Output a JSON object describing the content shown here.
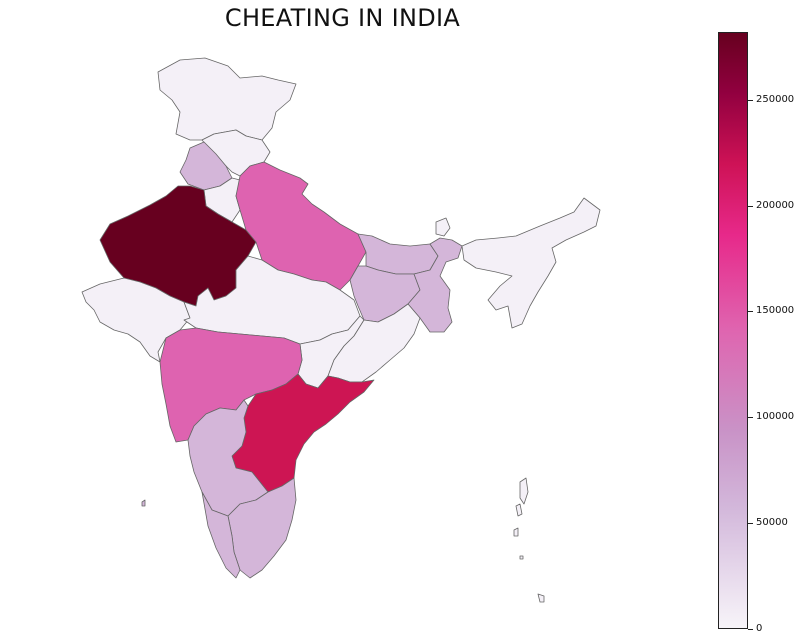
{
  "title": "CHEATING IN INDIA",
  "colorbar": {
    "min": 0,
    "max": 282000,
    "colormap": "PuRd",
    "ticks": [
      {
        "value": 0,
        "label": "0"
      },
      {
        "value": 50000,
        "label": "50000"
      },
      {
        "value": 100000,
        "label": "100000"
      },
      {
        "value": 150000,
        "label": "150000"
      },
      {
        "value": 200000,
        "label": "200000"
      },
      {
        "value": 250000,
        "label": "250000"
      }
    ]
  },
  "colors": {
    "very_low": "#f4f0f7",
    "low": "#d4b6d9",
    "mid": "#de63b0",
    "high": "#cd1553",
    "very_high": "#67001f"
  },
  "regions": [
    {
      "name": "Jammu & Kashmir",
      "level": "very_low"
    },
    {
      "name": "Himachal Pradesh",
      "level": "very_low"
    },
    {
      "name": "Punjab",
      "level": "low"
    },
    {
      "name": "Haryana",
      "level": "very_low"
    },
    {
      "name": "Rajasthan",
      "level": "very_high"
    },
    {
      "name": "Uttar Pradesh",
      "level": "mid"
    },
    {
      "name": "Gujarat",
      "level": "very_low"
    },
    {
      "name": "Madhya Pradesh",
      "level": "very_low"
    },
    {
      "name": "Bihar",
      "level": "low"
    },
    {
      "name": "Jharkhand",
      "level": "low"
    },
    {
      "name": "West Bengal",
      "level": "low"
    },
    {
      "name": "Northeast",
      "level": "very_low"
    },
    {
      "name": "Chhattisgarh",
      "level": "very_low"
    },
    {
      "name": "Odisha",
      "level": "very_low"
    },
    {
      "name": "Maharashtra",
      "level": "mid"
    },
    {
      "name": "Andhra Pradesh",
      "level": "high"
    },
    {
      "name": "Karnataka",
      "level": "low"
    },
    {
      "name": "Tamil Nadu",
      "level": "low"
    },
    {
      "name": "Kerala",
      "level": "low"
    }
  ]
}
